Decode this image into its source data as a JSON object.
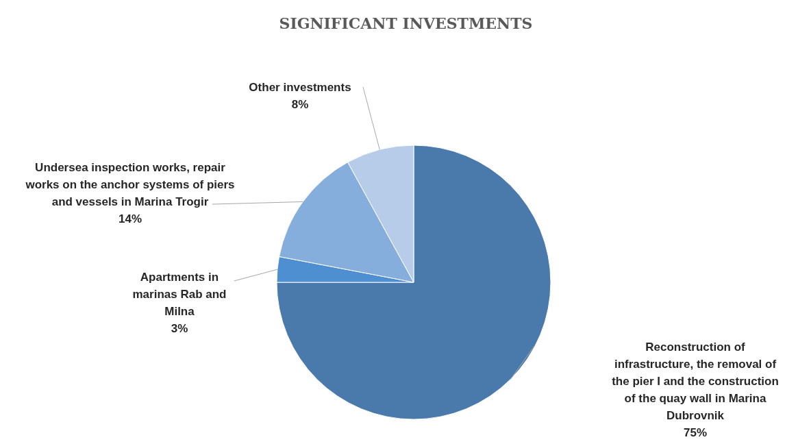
{
  "chart_data": {
    "type": "pie",
    "title": "SIGNIFICANT INVESTMENTS",
    "categories": [
      "Reconstruction of infrastructure, the removal of the pier I and the construction of the quay wall in Marina Dubrovnik",
      "Apartments in marinas Rab and Milna",
      "Undersea inspection works, repair works on the anchor systems of piers and vessels in Marina Trogir",
      "Other investments"
    ],
    "values": [
      75,
      3,
      14,
      8
    ],
    "value_labels": [
      "75%",
      "3%",
      "14%",
      "8%"
    ],
    "colors": [
      "#4a7aab",
      "#4d8fd0",
      "#86aedc",
      "#b7cce8"
    ]
  }
}
